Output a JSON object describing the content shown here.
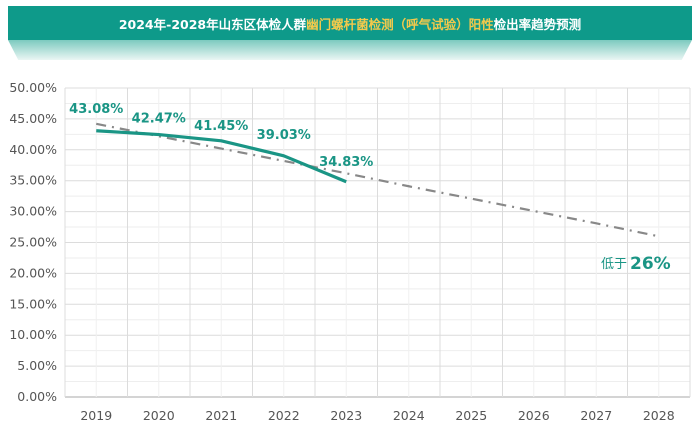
{
  "banner": {
    "title_parts": [
      {
        "text": "2024年-2028年山东区体检人群",
        "highlight": false
      },
      {
        "text": "幽门螺杆菌检测（呼气试验）阳性",
        "highlight": true
      },
      {
        "text": "检出率趋势预测",
        "highlight": false
      }
    ]
  },
  "chart_data": {
    "type": "line",
    "title": "2024年-2028年山东区体检人群幽门螺杆菌检测（呼气试验）阳性检出率趋势预测",
    "categories": [
      "2019",
      "2020",
      "2021",
      "2022",
      "2023",
      "2024",
      "2025",
      "2026",
      "2027",
      "2028"
    ],
    "ylim": [
      0,
      50
    ],
    "yticks": [
      "0.00%",
      "5.00%",
      "10.00%",
      "15.00%",
      "20.00%",
      "25.00%",
      "30.00%",
      "35.00%",
      "40.00%",
      "45.00%",
      "50.00%"
    ],
    "grid": true,
    "series": [
      {
        "values": [
          43.08,
          42.47,
          41.45,
          39.03,
          34.83,
          null,
          null,
          null,
          null,
          null
        ],
        "labels": [
          "43.08%",
          "42.47%",
          "41.45%",
          "39.03%",
          "34.83%"
        ],
        "color": "#1a9585",
        "style": "solid"
      },
      {
        "values": [
          44.2,
          42.2,
          40.2,
          38.2,
          36.2,
          34.1,
          32.1,
          30.1,
          28.1,
          26.0
        ],
        "color": "#888888",
        "style": "dash-dot",
        "trend": true
      }
    ],
    "annotation": {
      "prefix": "低于",
      "value": "26%"
    }
  }
}
